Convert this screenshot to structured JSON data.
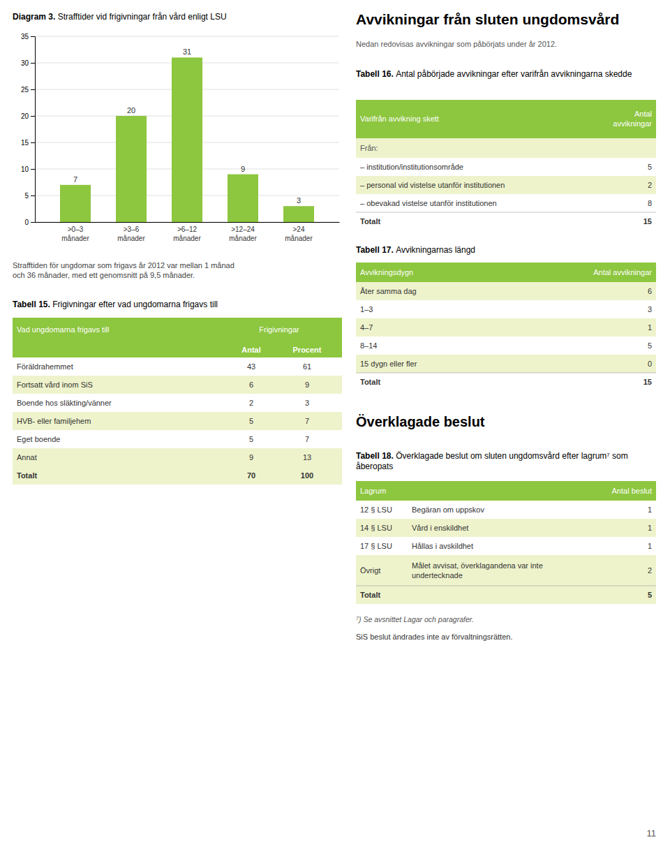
{
  "chart_data": {
    "type": "bar",
    "title": "Diagram 3. Strafftider vid frigivningar från vård enligt LSU",
    "categories": [
      ">0–3\nmånader",
      ">3–6\nmånader",
      ">6–12\nmånader",
      ">12–24\nmånader",
      ">24\nmånader"
    ],
    "values": [
      7,
      20,
      31,
      9,
      3
    ],
    "color": "#8dc63f",
    "ylim": [
      0,
      35
    ],
    "yticks": [
      0,
      5,
      10,
      15,
      20,
      25,
      30,
      35
    ],
    "grid": true,
    "data_labels": true
  },
  "page": {
    "caption": "Strafftiden för ungdomar som frigavs år 2012 var mellan 1 månad\noch 36 månader, med ett genomsnitt på 9,5 månader.",
    "right_title": "Avvikningar från sluten ungdomsvård",
    "right_subtitle": "Nedan redovisas avvikningar som påbörjats under år 2012.",
    "section_heading": "Överklagade beslut",
    "footnote": "⁷) Se avsnittet Lagar och paragrafer.",
    "note": "SiS beslut ändrades inte av förvaltningsrätten.",
    "page_number": "11"
  },
  "table_colors": {
    "header": "#8dc63f",
    "stripe": "#eef3cc"
  },
  "tables": [
    {
      "title": "Tabell 15. Frigivningar efter vad ungdomarna frigavs till",
      "header": [
        "Vad ungdomarna frigavs till",
        "Frigivningar"
      ],
      "subheader": [
        "Antal",
        "Procent"
      ],
      "rows": [
        [
          "Föräldrahemmet",
          "43",
          "61"
        ],
        [
          "Fortsatt vård inom SiS",
          "6",
          "9"
        ],
        [
          "Boende hos släkting/vänner",
          "2",
          "3"
        ],
        [
          "HVB- eller familjehem",
          "5",
          "7"
        ],
        [
          "Eget boende",
          "5",
          "7"
        ],
        [
          "Annat",
          "9",
          "13"
        ]
      ],
      "total": [
        "Totalt",
        "70",
        "100"
      ]
    },
    {
      "title": "Tabell 16. Antal påbörjade avvikningar efter varifrån avvikningarna skedde",
      "header": [
        "Varifrån avvikning skett",
        "Antal\navvikningar"
      ],
      "section": "Från:",
      "rows": [
        [
          "– institution/institutionsområde",
          "5"
        ],
        [
          "– personal vid vistelse utanför institutionen",
          "2"
        ],
        [
          "– obevakad vistelse utanför institutionen",
          "8"
        ]
      ],
      "total": [
        "Totalt",
        "15"
      ]
    },
    {
      "title": "Tabell 17. Avvikningarnas längd",
      "header": [
        "Avvikningsdygn",
        "Antal avvikningar"
      ],
      "rows": [
        [
          "Åter samma dag",
          "6"
        ],
        [
          "1–3",
          "3"
        ],
        [
          "4–7",
          "1"
        ],
        [
          "8–14",
          "5"
        ],
        [
          "15 dygn eller fler",
          "0"
        ]
      ],
      "total": [
        "Totalt",
        "15"
      ]
    },
    {
      "title": "Tabell 18. Överklagade beslut om sluten ungdomsvård efter lagrum⁷ som åberopats",
      "header": [
        "Lagrum",
        "Antal beslut"
      ],
      "rows": [
        [
          "12 § LSU",
          "Begäran om uppskov",
          "1"
        ],
        [
          "14 § LSU",
          "Vård i enskildhet",
          "1"
        ],
        [
          "17 § LSU",
          "Hållas i avskildhet",
          "1"
        ],
        [
          "Övrigt",
          "Målet avvisat, överklagandena var inte\nundertecknade",
          "2"
        ]
      ],
      "total": [
        "Totalt",
        "5"
      ]
    }
  ]
}
